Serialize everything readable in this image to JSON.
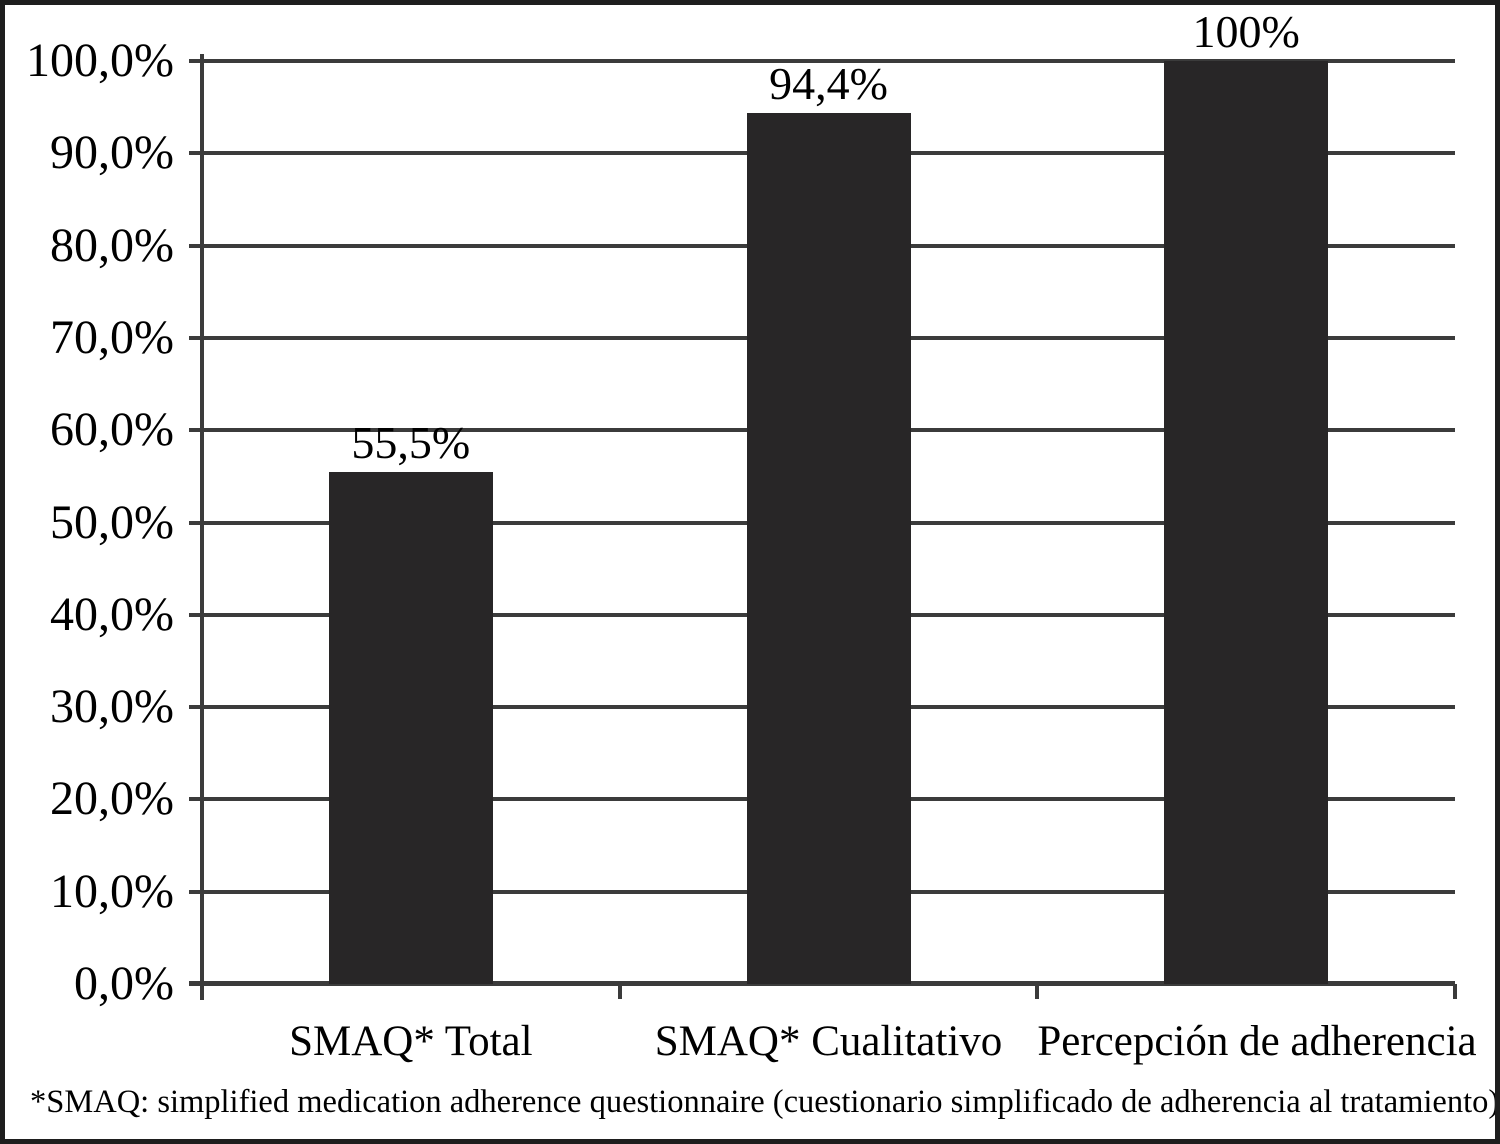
{
  "chart_data": {
    "type": "bar",
    "title": "",
    "categories": [
      "SMAQ* Total",
      "SMAQ* Cualitativo",
      "Percepción de adherencia"
    ],
    "values": [
      55.5,
      94.4,
      100
    ],
    "value_labels": [
      "55,5%",
      "94,4%",
      "100%"
    ],
    "xlabel": "",
    "ylabel": "",
    "ylim": [
      0,
      100
    ],
    "y_tick_step": 10,
    "y_tick_labels": [
      "0,0%",
      "10,0%",
      "20,0%",
      "30,0%",
      "40,0%",
      "50,0%",
      "60,0%",
      "70,0%",
      "80,0%",
      "90,0%",
      "100,0%"
    ],
    "grid": "horizontal-major",
    "legend": "none",
    "footnote": "*SMAQ: simplified medication adherence questionnaire (cuestionario simplificado de adherencia al tratamiento)"
  },
  "colors": {
    "bar": "#282627",
    "grid": "#3b3b3b",
    "axis": "#3b3b3b",
    "text": "#000000",
    "border": "#1e1e1e",
    "background": "#ffffff"
  }
}
